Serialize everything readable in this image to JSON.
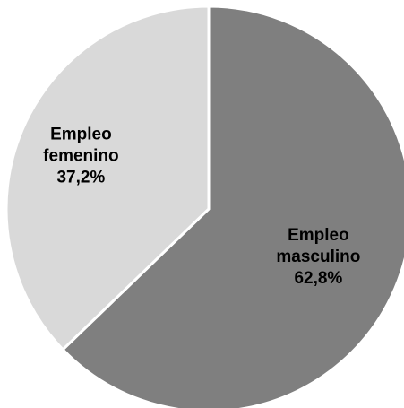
{
  "chart_data": {
    "type": "pie",
    "title": "",
    "start_angle_deg": 0,
    "direction": "clockwise",
    "slices": [
      {
        "label_lines": [
          "Empleo",
          "masculino"
        ],
        "value": 62.8,
        "value_label": "62,8%",
        "color": "#7f7f7f"
      },
      {
        "label_lines": [
          "Empleo",
          "femenino"
        ],
        "value": 37.2,
        "value_label": "37,2%",
        "color": "#d9d9d9"
      }
    ],
    "separator_color": "#ffffff"
  }
}
